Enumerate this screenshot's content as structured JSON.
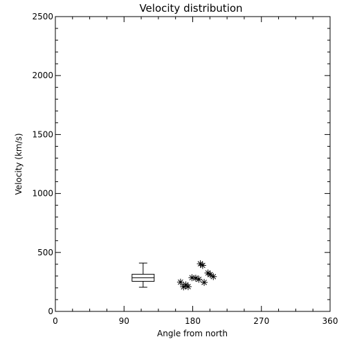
{
  "chart_data": {
    "type": "scatter",
    "title": "Velocity distribution",
    "xlabel": "Angle from north",
    "ylabel": "Velocity (km/s)",
    "xlim": [
      0,
      360
    ],
    "ylim": [
      0,
      2500
    ],
    "xticks": [
      0,
      90,
      180,
      270,
      360
    ],
    "xtick_labels": [
      "0",
      "90",
      "180",
      "270",
      "360"
    ],
    "yticks": [
      0,
      500,
      1000,
      1500,
      2000,
      2500
    ],
    "ytick_labels": [
      "0",
      "500",
      "1000",
      "1500",
      "2000",
      "2500"
    ],
    "grid": false,
    "marker": "asterisk",
    "points": [
      {
        "x": 164,
        "y": 248
      },
      {
        "x": 168,
        "y": 208
      },
      {
        "x": 171,
        "y": 225
      },
      {
        "x": 174,
        "y": 210
      },
      {
        "x": 179,
        "y": 286
      },
      {
        "x": 184,
        "y": 282
      },
      {
        "x": 188,
        "y": 272
      },
      {
        "x": 190,
        "y": 404
      },
      {
        "x": 193,
        "y": 390
      },
      {
        "x": 195,
        "y": 246
      },
      {
        "x": 200,
        "y": 326
      },
      {
        "x": 203,
        "y": 312
      },
      {
        "x": 207,
        "y": 295
      }
    ],
    "boxplot": {
      "x": 115,
      "whisker_low": 205,
      "q1": 255,
      "median": 285,
      "q3": 315,
      "whisker_high": 410
    }
  }
}
